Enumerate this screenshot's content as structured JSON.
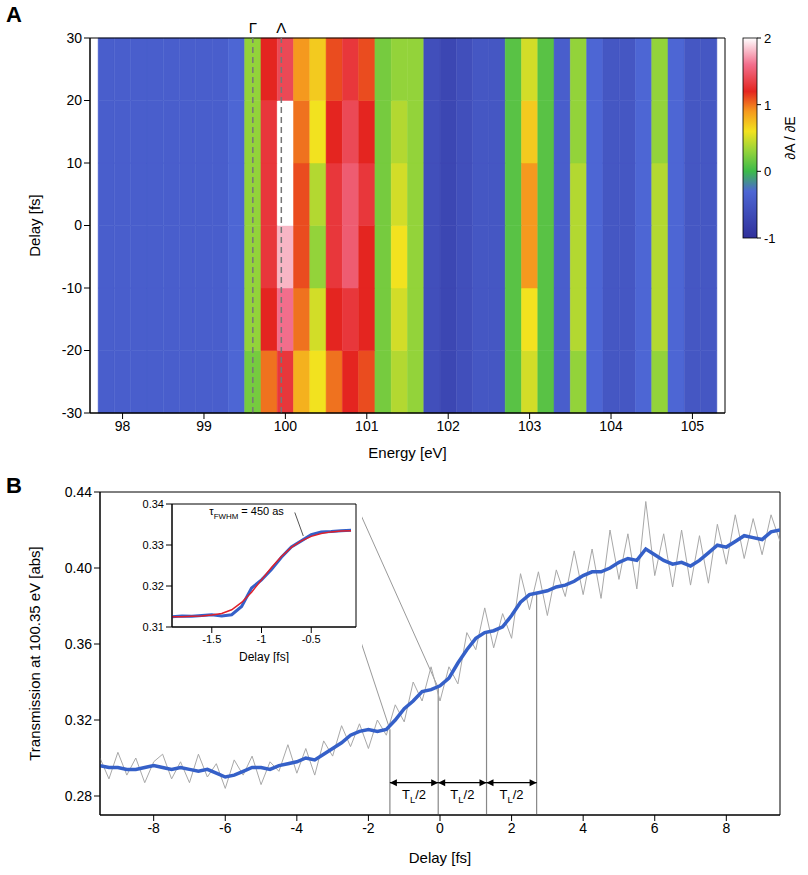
{
  "chart_data": [
    {
      "panel": "A",
      "type": "heatmap",
      "x_label": "Energy [eV]",
      "y_label": "Delay [fs]",
      "x": [
        97.8,
        98.0,
        98.2,
        98.4,
        98.6,
        98.8,
        99.0,
        99.2,
        99.4,
        99.6,
        99.8,
        100.0,
        100.2,
        100.4,
        100.6,
        100.8,
        101.0,
        101.2,
        101.4,
        101.6,
        101.8,
        102.0,
        102.2,
        102.4,
        102.6,
        102.8,
        103.0,
        103.2,
        103.4,
        103.6,
        103.8,
        104.0,
        104.2,
        104.4,
        104.6,
        104.8,
        105.0,
        105.2
      ],
      "y": [
        -25,
        -15,
        -5,
        5,
        15,
        25
      ],
      "z": [
        [
          -0.4,
          -0.4,
          -0.4,
          -0.4,
          -0.4,
          -0.4,
          -0.4,
          -0.4,
          -0.3,
          0.2,
          1.0,
          1.3,
          0.8,
          0.6,
          1.0,
          1.2,
          1.1,
          0.2,
          0.4,
          0.3,
          -0.6,
          -0.7,
          -0.6,
          -0.5,
          -0.5,
          0.1,
          0.5,
          0.1,
          -0.4,
          0.3,
          -0.3,
          -0.5,
          -0.5,
          -0.3,
          0.3,
          -0.3,
          -0.5,
          -0.5
        ],
        [
          -0.4,
          -0.4,
          -0.4,
          -0.4,
          -0.4,
          -0.4,
          -0.4,
          -0.4,
          -0.3,
          0.3,
          1.2,
          1.6,
          1.0,
          0.5,
          1.2,
          1.3,
          1.2,
          0.2,
          0.5,
          0.3,
          -0.6,
          -0.7,
          -0.6,
          -0.5,
          -0.5,
          0.1,
          0.6,
          0.1,
          -0.4,
          0.4,
          -0.3,
          -0.5,
          -0.5,
          -0.3,
          0.4,
          -0.3,
          -0.5,
          -0.5
        ],
        [
          -0.4,
          -0.4,
          -0.4,
          -0.4,
          -0.4,
          -0.4,
          -0.4,
          -0.4,
          -0.3,
          0.3,
          1.3,
          1.8,
          1.1,
          0.3,
          1.3,
          1.5,
          1.2,
          0.2,
          0.6,
          0.3,
          -0.6,
          -0.7,
          -0.6,
          -0.5,
          -0.5,
          0.1,
          0.9,
          0.1,
          -0.4,
          0.4,
          -0.3,
          -0.5,
          -0.5,
          -0.3,
          0.4,
          -0.3,
          -0.5,
          -0.5
        ],
        [
          -0.4,
          -0.4,
          -0.4,
          -0.4,
          -0.4,
          -0.4,
          -0.4,
          -0.4,
          -0.3,
          0.3,
          1.3,
          2.0,
          1.1,
          0.4,
          1.3,
          1.5,
          1.3,
          0.2,
          0.5,
          0.3,
          -0.6,
          -0.7,
          -0.6,
          -0.5,
          -0.5,
          0.1,
          0.9,
          0.1,
          -0.4,
          0.4,
          -0.3,
          -0.5,
          -0.5,
          -0.3,
          0.4,
          -0.3,
          -0.5,
          -0.5
        ],
        [
          -0.4,
          -0.4,
          -0.4,
          -0.4,
          -0.4,
          -0.4,
          -0.4,
          -0.4,
          -0.3,
          0.3,
          1.3,
          2.0,
          1.0,
          0.6,
          1.2,
          1.4,
          1.2,
          0.2,
          0.4,
          0.3,
          -0.6,
          -0.7,
          -0.6,
          -0.5,
          -0.5,
          0.1,
          0.7,
          0.1,
          -0.4,
          0.3,
          -0.3,
          -0.5,
          -0.5,
          -0.3,
          0.3,
          -0.3,
          -0.5,
          -0.5
        ],
        [
          -0.4,
          -0.4,
          -0.4,
          -0.4,
          -0.4,
          -0.4,
          -0.4,
          -0.4,
          -0.3,
          0.3,
          1.2,
          1.4,
          0.9,
          0.7,
          1.1,
          1.3,
          1.1,
          0.2,
          0.3,
          0.3,
          -0.6,
          -0.7,
          -0.6,
          -0.5,
          -0.5,
          0.1,
          0.5,
          0.1,
          -0.4,
          0.3,
          -0.3,
          -0.5,
          -0.5,
          -0.3,
          0.3,
          -0.3,
          -0.5,
          -0.5
        ]
      ],
      "xlim": [
        97.6,
        105.4
      ],
      "xticks": [
        98,
        99,
        100,
        101,
        102,
        103,
        104,
        105
      ],
      "ylim": [
        -30,
        30
      ],
      "yticks": [
        -30,
        -20,
        -10,
        0,
        10,
        20,
        30
      ],
      "colorbar": {
        "label": "∂A / ∂E",
        "range": [
          -1,
          2
        ],
        "ticks": [
          -1,
          0,
          1,
          2
        ]
      },
      "annotations": [
        {
          "text": "Γ",
          "x": 99.6
        },
        {
          "text": "Λ",
          "x": 99.95
        }
      ]
    },
    {
      "panel": "B",
      "type": "line",
      "x_label": "Delay [fs]",
      "y_label": "Transmission at 100.35 eV [abs]",
      "x": [
        -9.5,
        -9.25,
        -9,
        -8.75,
        -8.5,
        -8.25,
        -8,
        -7.75,
        -7.5,
        -7.25,
        -7,
        -6.75,
        -6.5,
        -6.25,
        -6,
        -5.75,
        -5.5,
        -5.25,
        -5,
        -4.75,
        -4.5,
        -4.25,
        -4,
        -3.75,
        -3.5,
        -3.25,
        -3,
        -2.75,
        -2.5,
        -2.25,
        -2,
        -1.75,
        -1.5,
        -1.25,
        -1,
        -0.75,
        -0.5,
        -0.25,
        0,
        0.25,
        0.5,
        0.75,
        1,
        1.25,
        1.5,
        1.75,
        2,
        2.25,
        2.5,
        2.75,
        3,
        3.25,
        3.5,
        3.75,
        4,
        4.25,
        4.5,
        4.75,
        5,
        5.25,
        5.5,
        5.75,
        6,
        6.25,
        6.5,
        6.75,
        7,
        7.25,
        7.5,
        7.75,
        8,
        8.25,
        8.5,
        8.75,
        9,
        9.25,
        9.5
      ],
      "series": [
        {
          "color": "#a8a8a8",
          "values": [
            0.3,
            0.289,
            0.303,
            0.291,
            0.3,
            0.287,
            0.298,
            0.302,
            0.289,
            0.298,
            0.287,
            0.302,
            0.29,
            0.297,
            0.284,
            0.299,
            0.291,
            0.301,
            0.286,
            0.298,
            0.293,
            0.307,
            0.292,
            0.305,
            0.291,
            0.309,
            0.301,
            0.317,
            0.306,
            0.318,
            0.305,
            0.32,
            0.312,
            0.328,
            0.319,
            0.34,
            0.33,
            0.348,
            0.33,
            0.348,
            0.339,
            0.366,
            0.357,
            0.379,
            0.358,
            0.376,
            0.363,
            0.397,
            0.378,
            0.398,
            0.375,
            0.399,
            0.385,
            0.409,
            0.386,
            0.41,
            0.384,
            0.42,
            0.394,
            0.418,
            0.389,
            0.435,
            0.396,
            0.418,
            0.39,
            0.42,
            0.391,
            0.417,
            0.392,
            0.423,
            0.402,
            0.428,
            0.405,
            0.426,
            0.407,
            0.428,
            0.414
          ]
        },
        {
          "color": "#3560c8",
          "values": [
            0.296,
            0.295,
            0.295,
            0.294,
            0.294,
            0.295,
            0.296,
            0.295,
            0.294,
            0.295,
            0.294,
            0.293,
            0.294,
            0.292,
            0.29,
            0.291,
            0.293,
            0.295,
            0.295,
            0.294,
            0.296,
            0.297,
            0.298,
            0.3,
            0.299,
            0.302,
            0.305,
            0.308,
            0.312,
            0.314,
            0.315,
            0.314,
            0.315,
            0.32,
            0.326,
            0.33,
            0.335,
            0.336,
            0.338,
            0.342,
            0.35,
            0.357,
            0.363,
            0.366,
            0.367,
            0.369,
            0.375,
            0.382,
            0.386,
            0.387,
            0.388,
            0.39,
            0.391,
            0.393,
            0.396,
            0.398,
            0.398,
            0.4,
            0.403,
            0.405,
            0.404,
            0.41,
            0.407,
            0.404,
            0.402,
            0.403,
            0.401,
            0.404,
            0.408,
            0.412,
            0.411,
            0.414,
            0.417,
            0.416,
            0.415,
            0.419,
            0.42
          ]
        }
      ],
      "xlim": [
        -9.5,
        9.5
      ],
      "xticks": [
        -8,
        -6,
        -4,
        -2,
        0,
        2,
        4,
        6,
        8
      ],
      "ylim": [
        0.27,
        0.44
      ],
      "yticks": [
        0.28,
        0.32,
        0.36,
        {
          "value": 0.4,
          "label": "0.40"
        },
        0.44
      ],
      "reference_lines": [
        {
          "x": -1.4,
          "y": 0.315
        },
        {
          "x": -0.05,
          "y": 0.337
        },
        {
          "x": 1.3,
          "y": 0.366
        },
        {
          "x": 2.7,
          "y": 0.387
        }
      ],
      "annotations": [
        {
          "text": "TL/2",
          "subscript": "L",
          "x1": -1.4,
          "x2": -0.05,
          "y": 0.287
        },
        {
          "text": "TL/2",
          "subscript": "L",
          "x1": -0.05,
          "x2": 1.3,
          "y": 0.287
        },
        {
          "text": "TL/2",
          "subscript": "L",
          "x1": 1.3,
          "x2": 2.7,
          "y": 0.287
        }
      ]
    },
    {
      "type": "line",
      "x_label": "Delay [fs]",
      "x": [
        -1.9,
        -1.8,
        -1.7,
        -1.6,
        -1.5,
        -1.4,
        -1.3,
        -1.2,
        -1.1,
        -1.0,
        -0.9,
        -0.8,
        -0.7,
        -0.6,
        -0.5,
        -0.4,
        -0.3,
        -0.2,
        -0.1
      ],
      "series": [
        {
          "color": "#3560c8",
          "values": [
            0.3125,
            0.3127,
            0.3126,
            0.3128,
            0.313,
            0.3127,
            0.313,
            0.315,
            0.3195,
            0.3215,
            0.324,
            0.327,
            0.3295,
            0.331,
            0.3325,
            0.3332,
            0.3333,
            0.3335,
            0.3336
          ]
        },
        {
          "color": "#e0202a",
          "values": [
            0.3125,
            0.3125,
            0.3126,
            0.3127,
            0.3129,
            0.3133,
            0.3142,
            0.316,
            0.3185,
            0.3215,
            0.3245,
            0.3272,
            0.3294,
            0.331,
            0.3321,
            0.3328,
            0.3332,
            0.3334,
            0.3335
          ]
        }
      ],
      "xlim": [
        -1.9,
        -0.05
      ],
      "xticks": [
        -1.5,
        -1,
        -0.5
      ],
      "ylim": [
        0.31,
        0.34
      ],
      "yticks": [
        0.31,
        0.32,
        0.33,
        0.34
      ],
      "annotations": [
        {
          "text": "τFWHM = 450 as",
          "subscript": "FWHM",
          "x": -1.15,
          "y": 0.3372,
          "arrow_x": -0.58,
          "arrow_y": 0.3322
        }
      ]
    }
  ]
}
